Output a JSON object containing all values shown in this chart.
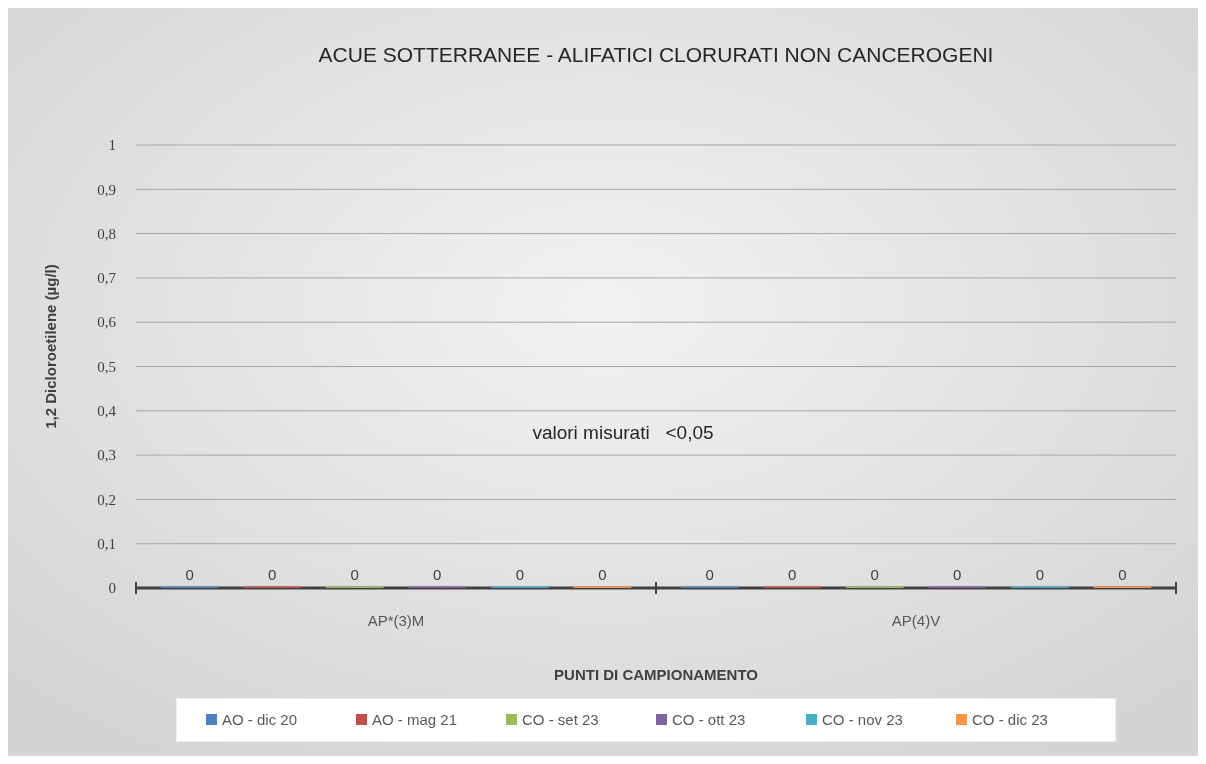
{
  "chart_data": {
    "type": "bar",
    "title": "ACUE SOTTERRANEE - ALIFATICI CLORURATI NON CANCEROGENI",
    "xlabel": "PUNTI DI CAMPIONAMENTO",
    "ylabel": "1,2 Dicloroetilene (µg/l)",
    "categories": [
      "AP*(3)M",
      "AP(4)V"
    ],
    "series": [
      {
        "name": "AO - dic 20",
        "color": "#4f81bd",
        "values": [
          0,
          0
        ]
      },
      {
        "name": "AO - mag 21",
        "color": "#c0504d",
        "values": [
          0,
          0
        ]
      },
      {
        "name": "CO - set 23",
        "color": "#9bbb59",
        "values": [
          0,
          0
        ]
      },
      {
        "name": "CO - ott 23",
        "color": "#8064a2",
        "values": [
          0,
          0
        ]
      },
      {
        "name": "CO - nov 23",
        "color": "#4bacc6",
        "values": [
          0,
          0
        ]
      },
      {
        "name": "CO - dic 23",
        "color": "#f79646",
        "values": [
          0,
          0
        ]
      }
    ],
    "ylim": [
      0,
      1
    ],
    "yticks": [
      0,
      {
        "value": 0.1,
        "label": "0,1"
      },
      {
        "value": 0.2,
        "label": "0,2"
      },
      {
        "value": 0.3,
        "label": "0,3"
      },
      {
        "value": 0.4,
        "label": "0,4"
      },
      {
        "value": 0.5,
        "label": "0,5"
      },
      {
        "value": 0.6,
        "label": "0,6"
      },
      {
        "value": 0.7,
        "label": "0,7"
      },
      {
        "value": 0.8,
        "label": "0,8"
      },
      {
        "value": 0.9,
        "label": "0,9"
      },
      1
    ],
    "grid": "y",
    "legend": "bottom",
    "data_labels": true,
    "annotations": [
      "valori misurati   <0,05"
    ]
  }
}
